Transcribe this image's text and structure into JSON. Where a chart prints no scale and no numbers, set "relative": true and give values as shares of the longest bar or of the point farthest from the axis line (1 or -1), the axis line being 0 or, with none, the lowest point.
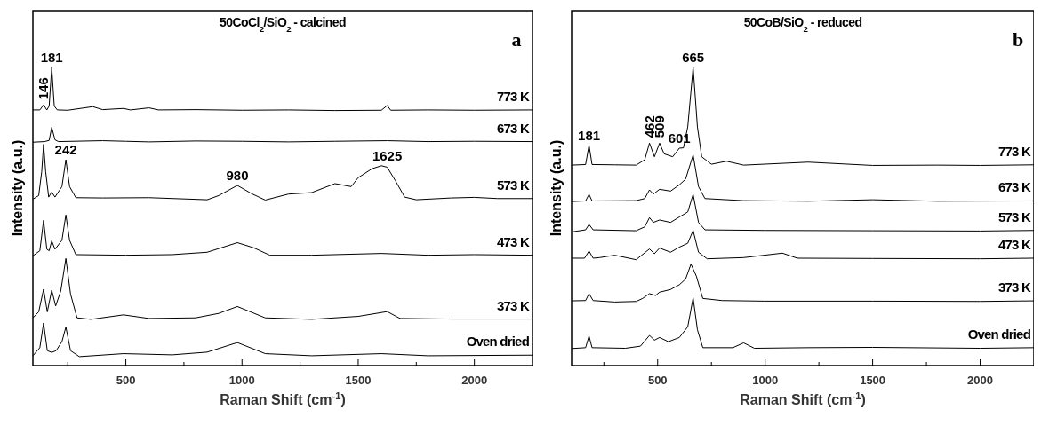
{
  "chart_data": [
    {
      "type": "line",
      "relative": true,
      "title": "50CoCl$_{2}$/SiO$_{2}$ - calcined",
      "xlabel": "Raman Shift (cm$^{-1}$)",
      "ylabel": "Intensity (a.u.)",
      "xlim": [
        100,
        2250
      ],
      "xticks": [
        {
          "value": 250,
          "label": null
        },
        500,
        {
          "value": 750,
          "label": null
        },
        1000,
        {
          "value": 1250,
          "label": null
        },
        1500,
        {
          "value": 1750,
          "label": null
        },
        2000
      ],
      "grid": false,
      "line_style": "solid",
      "annotations": [
        "a",
        {
          "text": "146",
          "x": 146,
          "y": 0.874
        },
        {
          "text": "181",
          "x": 181,
          "y": 1.0
        },
        {
          "text": "242",
          "x": 242,
          "y": 0.69
        },
        {
          "text": "980",
          "x": 980,
          "y": 0.604
        },
        {
          "text": "1625",
          "x": 1625,
          "y": 0.67
        }
      ],
      "series": [
        {
          "name": "773 K",
          "color": "#000000",
          "x": [
            100,
            130,
            146,
            160,
            170,
            181,
            192,
            205,
            250,
            358,
            400,
            490,
            520,
            600,
            640,
            800,
            1000,
            1200,
            1400,
            1600,
            1625,
            1640,
            1800,
            2000,
            2250
          ],
          "values": [
            0.857,
            0.857,
            0.874,
            0.857,
            0.87,
            1.0,
            0.87,
            0.857,
            0.856,
            0.868,
            0.858,
            0.862,
            0.857,
            0.864,
            0.857,
            0.858,
            0.856,
            0.857,
            0.855,
            0.856,
            0.872,
            0.856,
            0.857,
            0.856,
            0.857
          ]
        },
        {
          "name": "673 K",
          "color": "#000000",
          "x": [
            100,
            150,
            170,
            181,
            195,
            210,
            400,
            500,
            600,
            800,
            1000,
            1200,
            1400,
            1625,
            1800,
            2000,
            2250
          ],
          "values": [
            0.749,
            0.751,
            0.755,
            0.799,
            0.757,
            0.751,
            0.754,
            0.752,
            0.75,
            0.753,
            0.752,
            0.75,
            0.752,
            0.754,
            0.751,
            0.752,
            0.751
          ]
        },
        {
          "name": "573 K",
          "color": "#000000",
          "x": [
            100,
            125,
            138,
            146,
            155,
            168,
            181,
            195,
            225,
            242,
            258,
            285,
            400,
            600,
            850,
            900,
            980,
            1040,
            1100,
            1200,
            1300,
            1400,
            1470,
            1500,
            1560,
            1600,
            1625,
            1660,
            1700,
            1750,
            1900,
            2000,
            2100,
            2250
          ],
          "values": [
            0.558,
            0.57,
            0.65,
            0.742,
            0.65,
            0.565,
            0.582,
            0.565,
            0.6,
            0.69,
            0.6,
            0.563,
            0.562,
            0.563,
            0.556,
            0.57,
            0.604,
            0.577,
            0.555,
            0.575,
            0.58,
            0.61,
            0.6,
            0.63,
            0.66,
            0.67,
            0.665,
            0.62,
            0.565,
            0.556,
            0.562,
            0.564,
            0.56,
            0.56
          ]
        },
        {
          "name": "473 K",
          "color": "#000000",
          "x": [
            100,
            130,
            146,
            160,
            170,
            181,
            195,
            225,
            242,
            258,
            285,
            500,
            700,
            850,
            980,
            1050,
            1120,
            1300,
            1600,
            1800,
            2000,
            2250
          ],
          "values": [
            0.368,
            0.385,
            0.487,
            0.39,
            0.385,
            0.418,
            0.39,
            0.42,
            0.505,
            0.42,
            0.372,
            0.37,
            0.372,
            0.38,
            0.412,
            0.395,
            0.37,
            0.37,
            0.376,
            0.37,
            0.372,
            0.37
          ]
        },
        {
          "name": "373 K",
          "color": "#000000",
          "x": [
            100,
            125,
            146,
            162,
            181,
            198,
            220,
            242,
            262,
            290,
            350,
            490,
            600,
            800,
            900,
            980,
            1100,
            1300,
            1500,
            1625,
            1680,
            1900,
            2250
          ],
          "values": [
            0.16,
            0.18,
            0.256,
            0.18,
            0.253,
            0.2,
            0.25,
            0.359,
            0.24,
            0.16,
            0.155,
            0.17,
            0.158,
            0.16,
            0.175,
            0.198,
            0.16,
            0.155,
            0.165,
            0.181,
            0.158,
            0.156,
            0.156
          ]
        },
        {
          "name": "Oven dried",
          "color": "#000000",
          "x": [
            100,
            130,
            146,
            162,
            181,
            200,
            225,
            242,
            262,
            300,
            490,
            700,
            850,
            980,
            1100,
            1300,
            1600,
            1800,
            2250
          ],
          "values": [
            0.033,
            0.06,
            0.143,
            0.05,
            0.044,
            0.05,
            0.08,
            0.129,
            0.05,
            0.03,
            0.04,
            0.036,
            0.045,
            0.077,
            0.04,
            0.033,
            0.04,
            0.033,
            0.035
          ]
        }
      ]
    },
    {
      "type": "line",
      "relative": true,
      "title": "50CoB/SiO$_{2}$ - reduced",
      "xlabel": "Raman Shift (cm$^{-1}$)",
      "ylabel": "Intensity (a.u.)",
      "xlim": [
        100,
        2250
      ],
      "xticks": [
        {
          "value": 250,
          "label": null
        },
        500,
        {
          "value": 750,
          "label": null
        },
        1000,
        {
          "value": 1250,
          "label": null
        },
        1500,
        {
          "value": 1750,
          "label": null
        },
        2000
      ],
      "grid": false,
      "line_style": "solid",
      "annotations": [
        "b",
        {
          "text": "181",
          "x": 181,
          "y": 0.739
        },
        {
          "text": "462",
          "x": 462,
          "y": 0.746
        },
        {
          "text": "509",
          "x": 509,
          "y": 0.746
        },
        {
          "text": "601",
          "x": 601,
          "y": 0.729
        },
        {
          "text": "665",
          "x": 665,
          "y": 1.0
        }
      ],
      "series": [
        {
          "name": "773 K",
          "color": "#000000",
          "x": [
            100,
            165,
            181,
            195,
            300,
            400,
            440,
            462,
            485,
            509,
            530,
            570,
            601,
            620,
            640,
            665,
            685,
            705,
            750,
            820,
            900,
            1200,
            1500,
            1800,
            2000,
            2250
          ],
          "values": [
            0.672,
            0.674,
            0.739,
            0.674,
            0.673,
            0.672,
            0.69,
            0.746,
            0.7,
            0.746,
            0.71,
            0.7,
            0.729,
            0.73,
            0.8,
            1.0,
            0.8,
            0.7,
            0.675,
            0.685,
            0.672,
            0.682,
            0.671,
            0.672,
            0.671,
            0.673
          ]
        },
        {
          "name": "673 K",
          "color": "#000000",
          "x": [
            100,
            165,
            181,
            195,
            400,
            440,
            462,
            480,
            509,
            560,
            601,
            630,
            665,
            690,
            720,
            900,
            1200,
            1500,
            1800,
            2250
          ],
          "values": [
            0.55,
            0.552,
            0.574,
            0.552,
            0.553,
            0.56,
            0.589,
            0.575,
            0.591,
            0.585,
            0.606,
            0.625,
            0.706,
            0.6,
            0.56,
            0.553,
            0.551,
            0.556,
            0.551,
            0.552
          ]
        },
        {
          "name": "573 K",
          "color": "#000000",
          "x": [
            100,
            165,
            181,
            200,
            400,
            440,
            462,
            480,
            509,
            560,
            601,
            640,
            665,
            690,
            720,
            1000,
            1500,
            2000,
            2250
          ],
          "values": [
            0.448,
            0.455,
            0.473,
            0.455,
            0.452,
            0.465,
            0.496,
            0.48,
            0.488,
            0.48,
            0.498,
            0.515,
            0.574,
            0.48,
            0.455,
            0.453,
            0.452,
            0.451,
            0.453
          ]
        },
        {
          "name": "473 K",
          "color": "#000000",
          "x": [
            100,
            160,
            181,
            200,
            230,
            300,
            400,
            462,
            485,
            509,
            560,
            601,
            640,
            665,
            690,
            730,
            900,
            1080,
            1150,
            1500,
            2000,
            2250
          ],
          "values": [
            0.36,
            0.36,
            0.384,
            0.36,
            0.362,
            0.37,
            0.355,
            0.391,
            0.375,
            0.394,
            0.38,
            0.397,
            0.41,
            0.453,
            0.38,
            0.358,
            0.362,
            0.377,
            0.36,
            0.359,
            0.358,
            0.36
          ]
        },
        {
          "name": "373 K",
          "color": "#000000",
          "x": [
            100,
            165,
            181,
            200,
            300,
            400,
            430,
            462,
            490,
            509,
            560,
            601,
            630,
            655,
            680,
            710,
            800,
            1000,
            1500,
            2000,
            2250
          ],
          "values": [
            0.217,
            0.218,
            0.241,
            0.218,
            0.213,
            0.215,
            0.225,
            0.241,
            0.235,
            0.246,
            0.255,
            0.271,
            0.29,
            0.34,
            0.3,
            0.225,
            0.218,
            0.216,
            0.216,
            0.215,
            0.217
          ]
        },
        {
          "name": "Oven dried",
          "color": "#000000",
          "x": [
            100,
            165,
            181,
            195,
            350,
            420,
            462,
            485,
            509,
            550,
            601,
            640,
            665,
            685,
            710,
            850,
            900,
            950,
            1200,
            1500,
            2000,
            2250
          ],
          "values": [
            0.057,
            0.06,
            0.099,
            0.06,
            0.058,
            0.065,
            0.101,
            0.085,
            0.094,
            0.08,
            0.094,
            0.13,
            0.227,
            0.12,
            0.06,
            0.06,
            0.076,
            0.058,
            0.06,
            0.061,
            0.058,
            0.06
          ]
        }
      ]
    }
  ]
}
